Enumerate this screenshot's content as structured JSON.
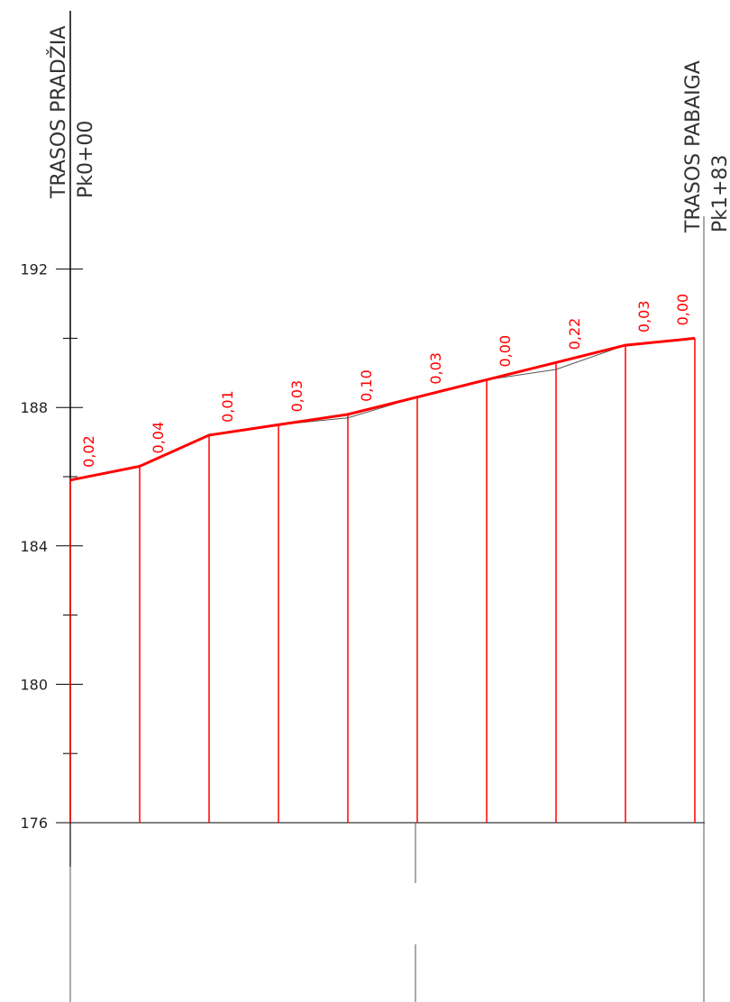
{
  "chart_data": {
    "type": "line",
    "title": "",
    "xlabel": "",
    "ylabel": "",
    "ylim": [
      176,
      194
    ],
    "yticks": [
      176,
      180,
      184,
      188,
      192
    ],
    "x": [
      0,
      1,
      2,
      3,
      4,
      5,
      6,
      7,
      8,
      9
    ],
    "series": [
      {
        "values": [
          185.9,
          186.3,
          187.2,
          187.5,
          187.8,
          188.3,
          188.8,
          189.3,
          189.8,
          190.0
        ]
      },
      {
        "values": [
          185.9,
          186.3,
          187.2,
          187.5,
          187.7,
          188.3,
          188.8,
          189.1,
          189.8,
          190.0
        ]
      }
    ],
    "differences": [
      "0,02",
      "0,04",
      "0,01",
      "0,03",
      "0,10",
      "0,03",
      "0,00",
      "0,22",
      "0,03",
      "0,00"
    ],
    "start_marker": {
      "title": "TRASOS PRADŽIA",
      "station": "Pk0+00"
    },
    "end_marker": {
      "title": "TRASOS PABAIGA",
      "station": "Pk1+83"
    },
    "colors": {
      "design": "#ff0000",
      "ground": "#555555",
      "axis": "#000000"
    }
  }
}
